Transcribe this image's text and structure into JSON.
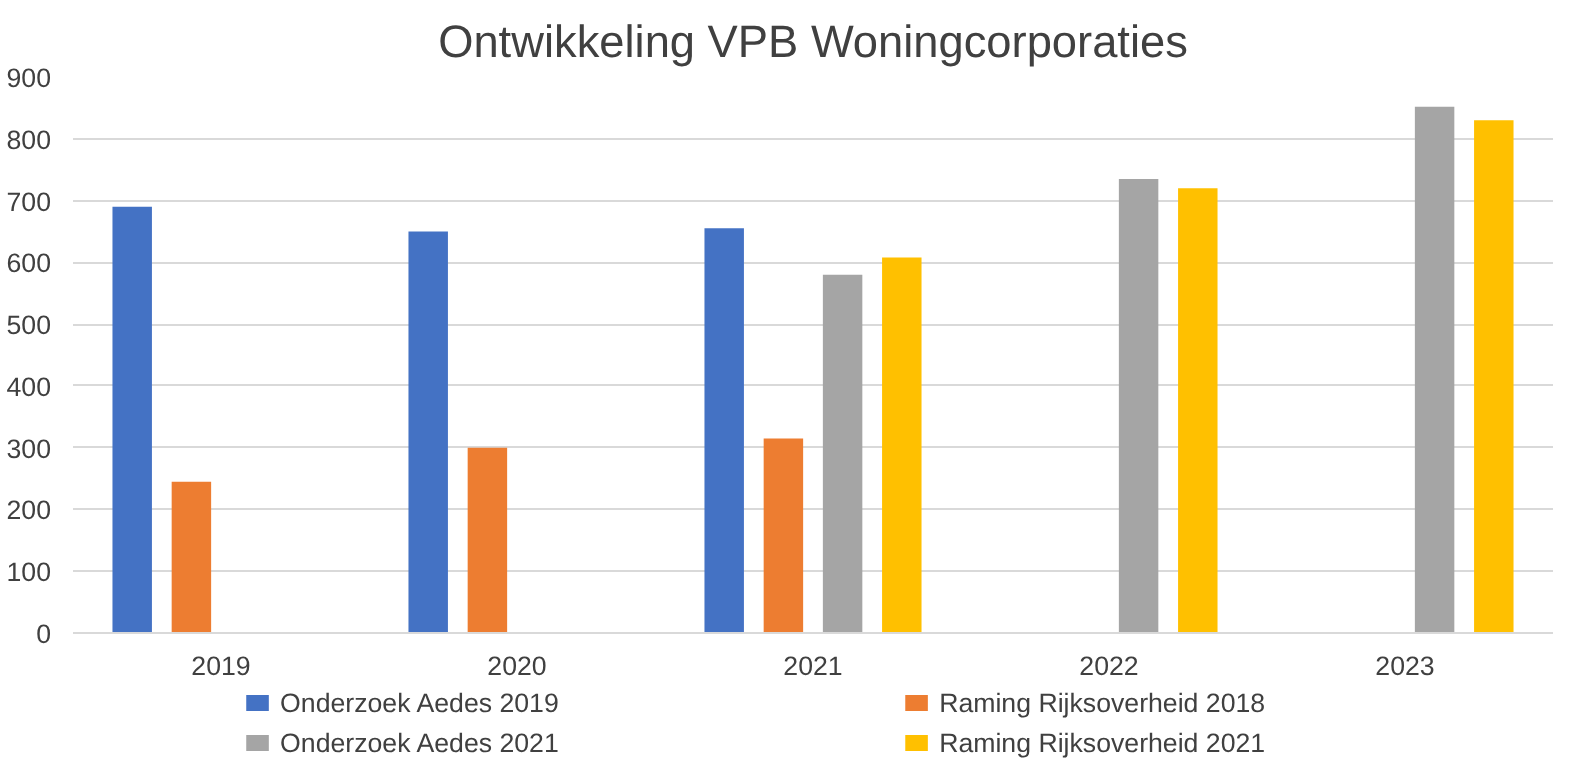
{
  "chart_data": {
    "type": "bar",
    "title": "Ontwikkeling VPB Woningcorporaties",
    "categories": [
      "2019",
      "2020",
      "2021",
      "2022",
      "2023"
    ],
    "series": [
      {
        "name": "Onderzoek Aedes 2019",
        "color": "#4472c4",
        "values": [
          690,
          650,
          655,
          null,
          null
        ]
      },
      {
        "name": "Raming Rijksoverheid 2018",
        "color": "#ed7d31",
        "values": [
          245,
          300,
          315,
          null,
          null
        ]
      },
      {
        "name": "Onderzoek Aedes 2021",
        "color": "#a5a5a5",
        "values": [
          null,
          null,
          580,
          735,
          852
        ]
      },
      {
        "name": "Raming Rijksoverheid 2021",
        "color": "#ffc000",
        "values": [
          null,
          null,
          608,
          720,
          830
        ]
      }
    ],
    "ylim": [
      0,
      900
    ],
    "yticks": [
      0,
      100,
      200,
      300,
      400,
      500,
      600,
      700,
      800,
      900
    ],
    "grid": "y",
    "legend": "bottom"
  }
}
